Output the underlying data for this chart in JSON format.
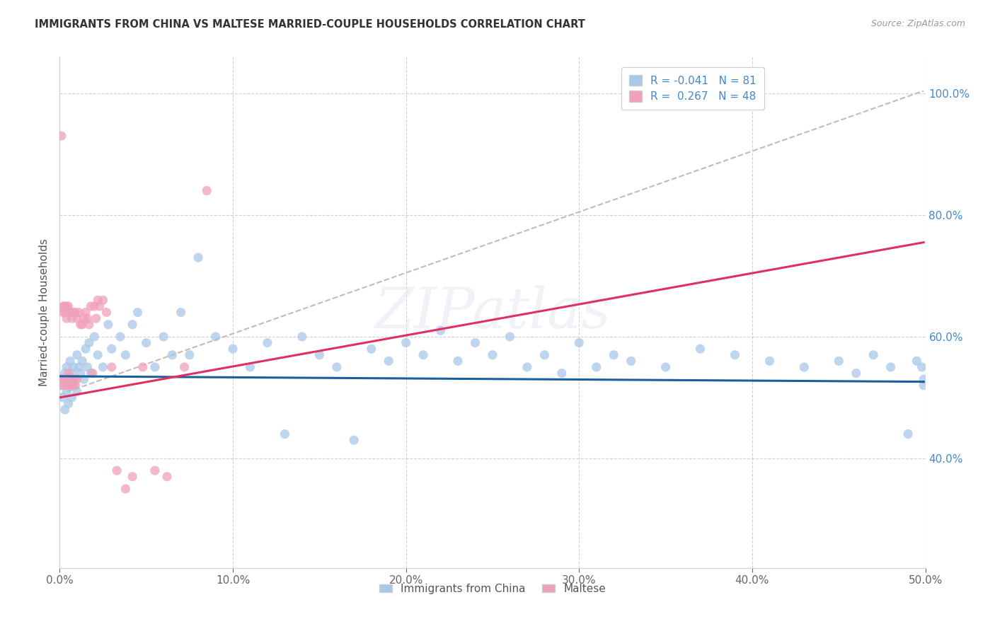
{
  "title": "IMMIGRANTS FROM CHINA VS MALTESE MARRIED-COUPLE HOUSEHOLDS CORRELATION CHART",
  "source": "Source: ZipAtlas.com",
  "ylabel": "Married-couple Households",
  "xlim": [
    0.0,
    0.5
  ],
  "ylim": [
    0.22,
    1.06
  ],
  "xtick_vals": [
    0.0,
    0.1,
    0.2,
    0.3,
    0.4,
    0.5
  ],
  "ytick_vals": [
    0.4,
    0.6,
    0.8,
    1.0
  ],
  "blue_color": "#a8c8e8",
  "pink_color": "#f0a0b8",
  "blue_line_color": "#1a5fa0",
  "pink_line_color": "#e03060",
  "diag_line_color": "#c8b8b8",
  "legend_R_blue": "-0.041",
  "legend_N_blue": "81",
  "legend_R_pink": "0.267",
  "legend_N_pink": "48",
  "legend_label_blue": "Immigrants from China",
  "legend_label_pink": "Maltese",
  "blue_scatter_x": [
    0.001,
    0.002,
    0.002,
    0.003,
    0.003,
    0.004,
    0.004,
    0.005,
    0.005,
    0.006,
    0.006,
    0.007,
    0.007,
    0.008,
    0.008,
    0.009,
    0.01,
    0.01,
    0.011,
    0.012,
    0.013,
    0.014,
    0.015,
    0.016,
    0.017,
    0.018,
    0.02,
    0.022,
    0.025,
    0.028,
    0.03,
    0.035,
    0.038,
    0.042,
    0.045,
    0.05,
    0.055,
    0.06,
    0.065,
    0.07,
    0.075,
    0.08,
    0.09,
    0.1,
    0.11,
    0.12,
    0.13,
    0.14,
    0.15,
    0.16,
    0.17,
    0.18,
    0.19,
    0.2,
    0.21,
    0.22,
    0.23,
    0.24,
    0.25,
    0.26,
    0.27,
    0.28,
    0.29,
    0.3,
    0.31,
    0.32,
    0.33,
    0.35,
    0.37,
    0.39,
    0.41,
    0.43,
    0.45,
    0.46,
    0.47,
    0.48,
    0.49,
    0.495,
    0.498,
    0.499,
    0.499
  ],
  "blue_scatter_y": [
    0.52,
    0.5,
    0.53,
    0.48,
    0.54,
    0.51,
    0.55,
    0.49,
    0.53,
    0.52,
    0.56,
    0.5,
    0.54,
    0.52,
    0.55,
    0.53,
    0.51,
    0.57,
    0.55,
    0.54,
    0.56,
    0.53,
    0.58,
    0.55,
    0.59,
    0.54,
    0.6,
    0.57,
    0.55,
    0.62,
    0.58,
    0.6,
    0.57,
    0.62,
    0.64,
    0.59,
    0.55,
    0.6,
    0.57,
    0.64,
    0.57,
    0.73,
    0.6,
    0.58,
    0.55,
    0.59,
    0.44,
    0.6,
    0.57,
    0.55,
    0.43,
    0.58,
    0.56,
    0.59,
    0.57,
    0.61,
    0.56,
    0.59,
    0.57,
    0.6,
    0.55,
    0.57,
    0.54,
    0.59,
    0.55,
    0.57,
    0.56,
    0.55,
    0.58,
    0.57,
    0.56,
    0.55,
    0.56,
    0.54,
    0.57,
    0.55,
    0.44,
    0.56,
    0.55,
    0.53,
    0.52
  ],
  "pink_scatter_x": [
    0.001,
    0.001,
    0.002,
    0.002,
    0.002,
    0.003,
    0.003,
    0.003,
    0.004,
    0.004,
    0.004,
    0.005,
    0.005,
    0.005,
    0.006,
    0.006,
    0.007,
    0.007,
    0.008,
    0.008,
    0.009,
    0.009,
    0.01,
    0.01,
    0.011,
    0.012,
    0.013,
    0.014,
    0.015,
    0.016,
    0.017,
    0.018,
    0.019,
    0.02,
    0.021,
    0.022,
    0.023,
    0.025,
    0.027,
    0.03,
    0.033,
    0.038,
    0.042,
    0.048,
    0.055,
    0.062,
    0.072,
    0.085
  ],
  "pink_scatter_y": [
    0.93,
    0.53,
    0.65,
    0.64,
    0.52,
    0.65,
    0.64,
    0.53,
    0.65,
    0.63,
    0.52,
    0.65,
    0.54,
    0.52,
    0.64,
    0.53,
    0.63,
    0.52,
    0.64,
    0.53,
    0.64,
    0.52,
    0.63,
    0.53,
    0.64,
    0.62,
    0.62,
    0.63,
    0.64,
    0.63,
    0.62,
    0.65,
    0.54,
    0.65,
    0.63,
    0.66,
    0.65,
    0.66,
    0.64,
    0.55,
    0.38,
    0.35,
    0.37,
    0.55,
    0.38,
    0.37,
    0.55,
    0.84
  ],
  "blue_line_x": [
    0.0,
    0.499
  ],
  "blue_line_y": [
    0.535,
    0.526
  ],
  "pink_line_x": [
    0.0,
    0.499
  ],
  "pink_line_y": [
    0.5,
    0.755
  ],
  "diag_line_x": [
    0.0,
    0.499
  ],
  "diag_line_y": [
    0.505,
    1.004
  ]
}
